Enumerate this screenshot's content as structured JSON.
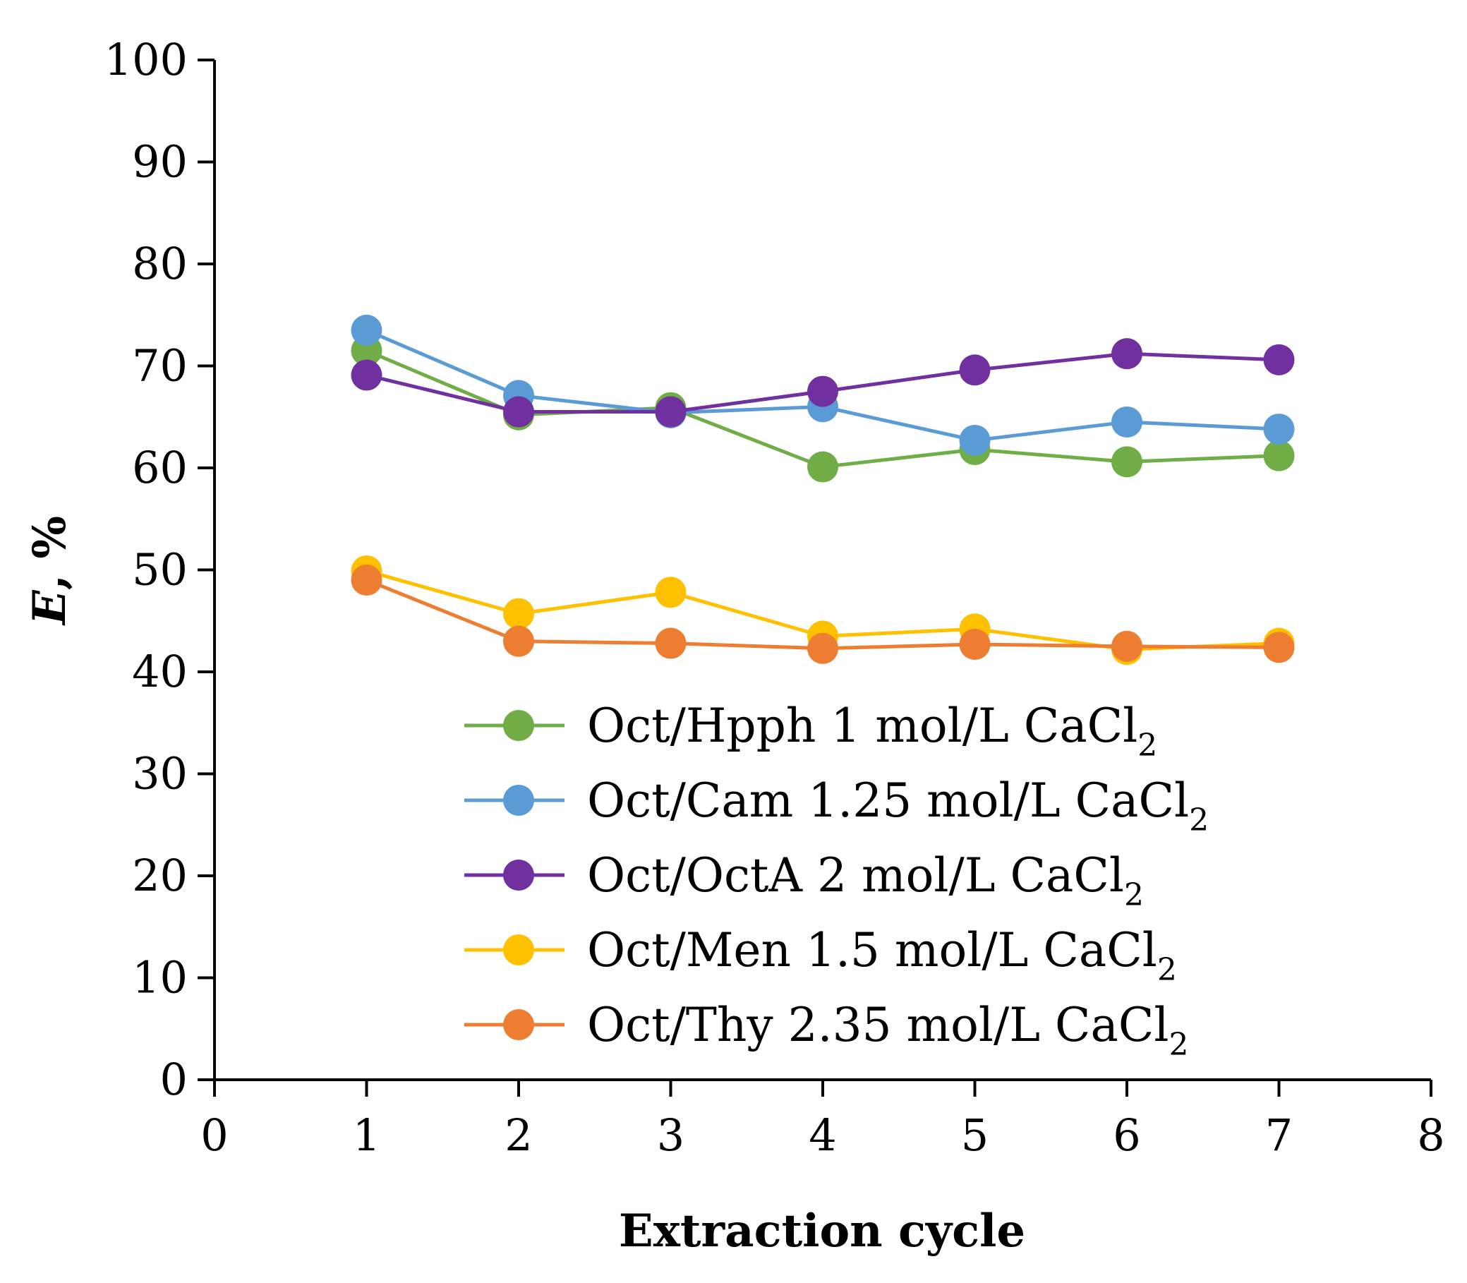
{
  "chart_data": {
    "type": "line",
    "title": "",
    "xlabel": "Extraction cycle",
    "ylabel": "E, %",
    "xlim": [
      0,
      8
    ],
    "ylim": [
      0,
      100
    ],
    "x_ticks": [
      0,
      1,
      2,
      3,
      4,
      5,
      6,
      7,
      8
    ],
    "y_ticks": [
      0,
      10,
      20,
      30,
      40,
      50,
      60,
      70,
      80,
      90,
      100
    ],
    "grid": false,
    "legend_position": "bottom-center",
    "x": [
      1,
      2,
      3,
      4,
      5,
      6,
      7
    ],
    "series": [
      {
        "name": "Oct/Hpph 1 mol/L CaCl",
        "subscript": "2",
        "color": "#70AD47",
        "values": [
          71.5,
          65.2,
          65.9,
          60.1,
          61.8,
          60.6,
          61.2
        ]
      },
      {
        "name": "Oct/Cam 1.25 mol/L CaCl",
        "subscript": "2",
        "color": "#5B9BD5",
        "values": [
          73.5,
          67.1,
          65.4,
          66.0,
          62.7,
          64.5,
          63.8
        ]
      },
      {
        "name": "Oct/OctA 2 mol/L CaCl",
        "subscript": "2",
        "color": "#7030A0",
        "values": [
          69.1,
          65.5,
          65.5,
          67.5,
          69.6,
          71.2,
          70.6
        ]
      },
      {
        "name": "Oct/Men 1.5 mol/L CaCl",
        "subscript": "2",
        "color": "#FFC000",
        "values": [
          49.9,
          45.7,
          47.8,
          43.5,
          44.2,
          42.2,
          42.8
        ]
      },
      {
        "name": "Oct/Thy 2.35 mol/L CaCl",
        "subscript": "2",
        "color": "#ED7D31",
        "values": [
          49.0,
          43.0,
          42.8,
          42.3,
          42.7,
          42.5,
          42.4
        ]
      }
    ]
  }
}
